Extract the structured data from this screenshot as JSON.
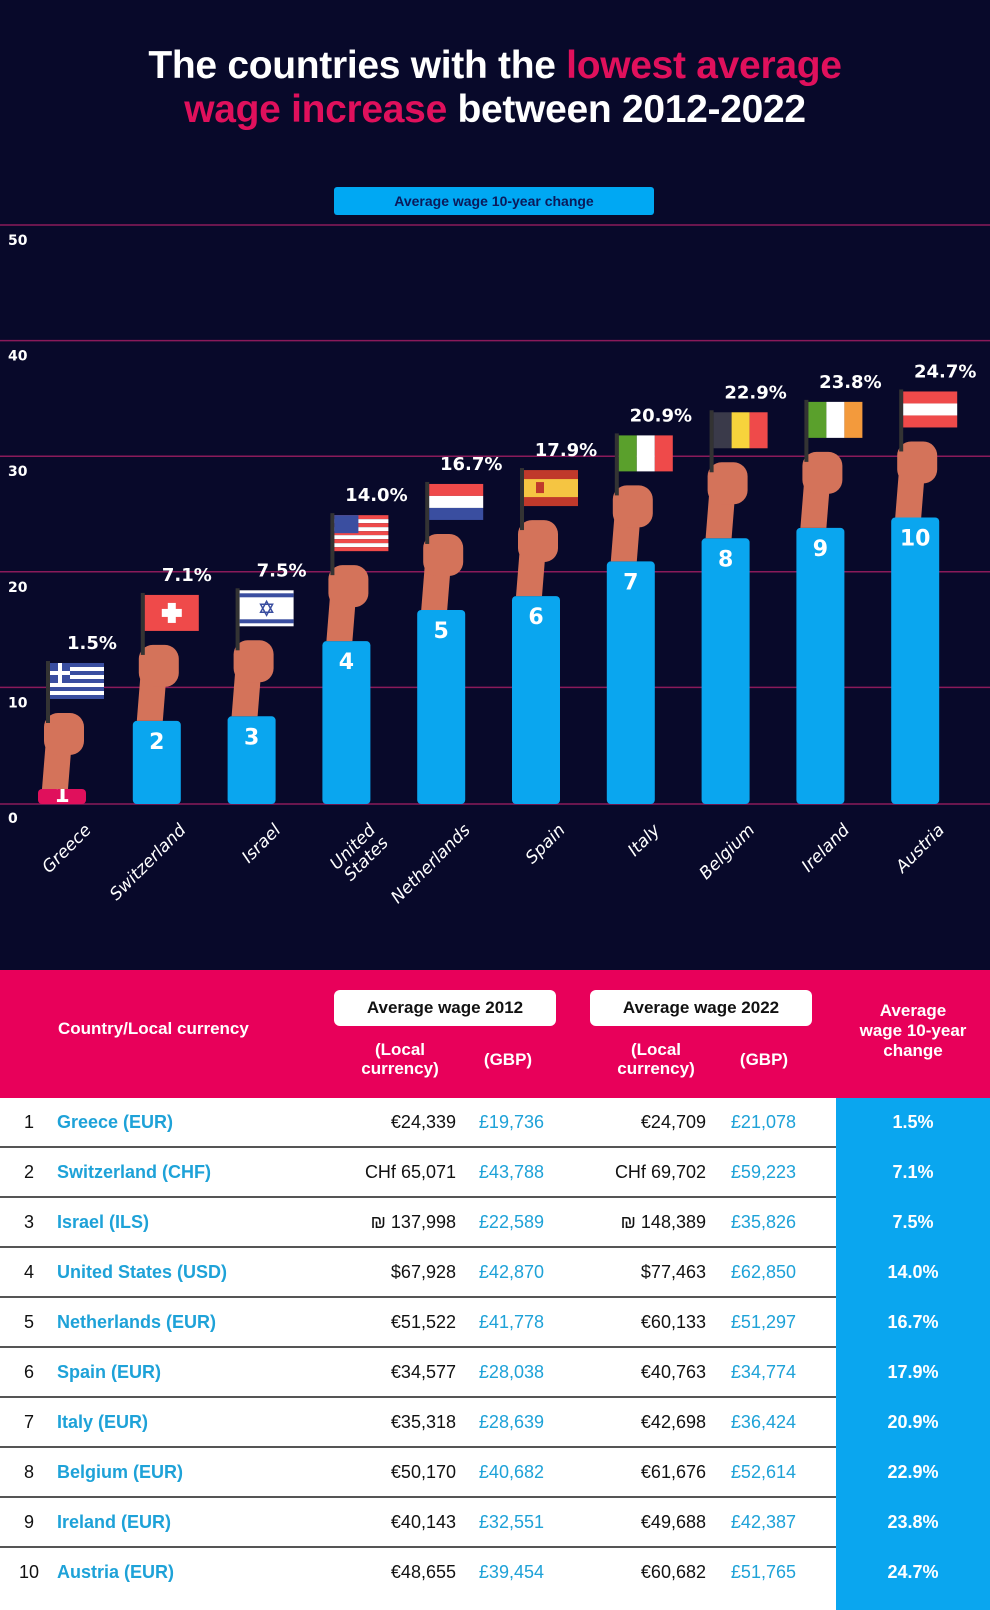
{
  "title": {
    "part1": "The countries with the ",
    "highlight1": "lowest average",
    "highlight2": "wage increase",
    "part2": " between 2012-2022"
  },
  "legend": {
    "label": "Average wage 10-year change",
    "color": "#00a8f3"
  },
  "colors": {
    "background": "#08092a",
    "accent": "#e0105c",
    "bar": "#0aa6ef",
    "first_bar": "#e0105c",
    "gridline": "#8a1a5a",
    "skin": "#d4735a"
  },
  "chart_data": {
    "type": "bar",
    "title": "The countries with the lowest average wage increase between 2012-2022",
    "xlabel": "",
    "ylabel": "",
    "ylim": [
      0,
      50
    ],
    "yticks": [
      0,
      10,
      20,
      30,
      40,
      50
    ],
    "grid": true,
    "legend": {
      "position": "top-center",
      "entries": [
        "Average wage 10-year change"
      ]
    },
    "categories": [
      "Greece",
      "Switzerland",
      "Israel",
      "United States",
      "Netherlands",
      "Spain",
      "Italy",
      "Belgium",
      "Ireland",
      "Austria"
    ],
    "series": [
      {
        "name": "Average wage 10-year change",
        "unit": "%",
        "values": [
          1.5,
          7.1,
          7.5,
          14.0,
          16.7,
          17.9,
          20.9,
          22.9,
          23.8,
          24.7
        ]
      }
    ],
    "data_labels": [
      "1.5%",
      "7.1%",
      "7.5%",
      "14.0%",
      "16.7%",
      "17.9%",
      "20.9%",
      "22.9%",
      "23.8%",
      "24.7%"
    ],
    "ranks": [
      "1",
      "2",
      "3",
      "4",
      "5",
      "6",
      "7",
      "8",
      "9",
      "10"
    ],
    "flags": [
      "greece-flag",
      "switzerland-flag",
      "israel-flag",
      "united-states-flag",
      "netherlands-flag",
      "spain-flag",
      "italy-flag",
      "belgium-flag",
      "ireland-flag",
      "austria-flag"
    ]
  },
  "table": {
    "headers": {
      "country": "Country/Local currency",
      "wage2012": "Average wage 2012",
      "wage2022": "Average wage 2022",
      "local": [
        "(Local",
        "currency)"
      ],
      "gbp": "(GBP)",
      "change": [
        "Average",
        "wage 10-year",
        "change"
      ]
    },
    "rows": [
      {
        "rank": "1",
        "country": "Greece (EUR)",
        "local2012": "€24,339",
        "gbp2012": "£19,736",
        "local2022": "€24,709",
        "gbp2022": "£21,078",
        "change": "1.5%"
      },
      {
        "rank": "2",
        "country": "Switzerland (CHF)",
        "local2012": "CHf 65,071",
        "gbp2012": "£43,788",
        "local2022": "CHf 69,702",
        "gbp2022": "£59,223",
        "change": "7.1%"
      },
      {
        "rank": "3",
        "country": "Israel (ILS)",
        "local2012": "₪ 137,998",
        "gbp2012": "£22,589",
        "local2022": "₪ 148,389",
        "gbp2022": "£35,826",
        "change": "7.5%"
      },
      {
        "rank": "4",
        "country": "United States (USD)",
        "local2012": "$67,928",
        "gbp2012": "£42,870",
        "local2022": "$77,463",
        "gbp2022": "£62,850",
        "change": "14.0%"
      },
      {
        "rank": "5",
        "country": "Netherlands (EUR)",
        "local2012": "€51,522",
        "gbp2012": "£41,778",
        "local2022": "€60,133",
        "gbp2022": "£51,297",
        "change": "16.7%"
      },
      {
        "rank": "6",
        "country": "Spain (EUR)",
        "local2012": "€34,577",
        "gbp2012": "£28,038",
        "local2022": "€40,763",
        "gbp2022": "£34,774",
        "change": "17.9%"
      },
      {
        "rank": "7",
        "country": "Italy (EUR)",
        "local2012": "€35,318",
        "gbp2012": "£28,639",
        "local2022": "€42,698",
        "gbp2022": "£36,424",
        "change": "20.9%"
      },
      {
        "rank": "8",
        "country": "Belgium (EUR)",
        "local2012": "€50,170",
        "gbp2012": "£40,682",
        "local2022": "€61,676",
        "gbp2022": "£52,614",
        "change": "22.9%"
      },
      {
        "rank": "9",
        "country": "Ireland (EUR)",
        "local2012": "€40,143",
        "gbp2012": "£32,551",
        "local2022": "€49,688",
        "gbp2022": "£42,387",
        "change": "23.8%"
      },
      {
        "rank": "10",
        "country": "Austria (EUR)",
        "local2012": "€48,655",
        "gbp2012": "£39,454",
        "local2022": "€60,682",
        "gbp2022": "£51,765",
        "change": "24.7%"
      }
    ]
  }
}
